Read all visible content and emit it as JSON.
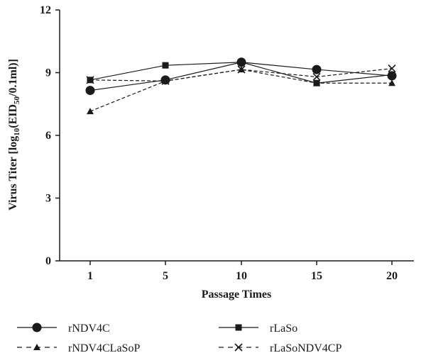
{
  "chart_data": {
    "type": "line",
    "categories": [
      "1",
      "5",
      "10",
      "15",
      "20"
    ],
    "xlabel": "Passage Times",
    "ylabel": {
      "prefix": "Virus Titer [log",
      "sub1": "10",
      "mid": "(EID",
      "sub2": "50",
      "suffix": "/0.1ml)]"
    },
    "ylim": [
      0,
      12
    ],
    "yticks": [
      "0",
      "3",
      "6",
      "9",
      "12"
    ],
    "grid": false,
    "legend_position": "bottom",
    "series": [
      {
        "name": "rNDV4C",
        "marker": "circle",
        "dash": "solid",
        "values": [
          8.15,
          8.65,
          9.5,
          9.15,
          8.85
        ]
      },
      {
        "name": "rLaSo",
        "marker": "square",
        "dash": "solid",
        "values": [
          8.65,
          9.35,
          9.5,
          8.5,
          8.9
        ]
      },
      {
        "name": "rNDV4CLaSoP",
        "marker": "triangle",
        "dash": "dashed",
        "values": [
          7.15,
          8.6,
          9.15,
          8.5,
          8.5
        ]
      },
      {
        "name": "rLaSoNDV4CP",
        "marker": "x",
        "dash": "dashed",
        "values": [
          8.65,
          8.6,
          9.15,
          8.8,
          9.2
        ]
      }
    ]
  }
}
